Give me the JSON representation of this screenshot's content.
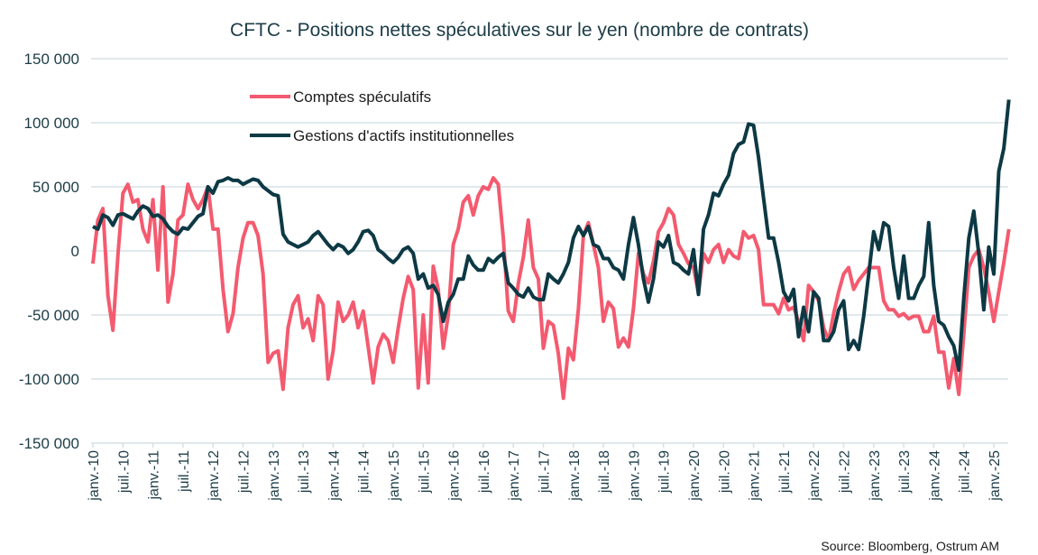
{
  "chart_data": {
    "type": "line",
    "title": "CFTC - Positions nettes spéculatives sur le yen (nombre de contrats)",
    "xlabel": "",
    "ylabel": "",
    "x_start": "janv. 2010",
    "x_frequency": "monthly",
    "ylim": [
      -150000,
      150000
    ],
    "yticks": [
      150000,
      100000,
      50000,
      0,
      -50000,
      -100000,
      -150000
    ],
    "ytick_labels": [
      "150 000",
      "100 000",
      "50 000",
      "0",
      "-50 000",
      "-100 000",
      "-150 000"
    ],
    "xtick_labels": [
      "janv.-10",
      "juil.-10",
      "janv.-11",
      "juil.-11",
      "janv.-12",
      "juil.-12",
      "janv.-13",
      "juil.-13",
      "janv.-14",
      "juil.-14",
      "janv.-15",
      "juil.-15",
      "janv.-16",
      "juil.-16",
      "janv.-17",
      "juil.-17",
      "janv.-18",
      "juil.-18",
      "janv.-19",
      "juil.-19",
      "janv.-20",
      "juil.-20",
      "janv.-21",
      "juil.-21",
      "janv.-22",
      "juil.-22",
      "janv.-23",
      "juil.-23",
      "janv.-24",
      "juil.-24",
      "janv.-25"
    ],
    "grid": true,
    "legend_position": "top-left",
    "series": [
      {
        "name": "Comptes spéculatifs",
        "color": "#f45a6f",
        "values": [
          -10000,
          24000,
          33000,
          -35000,
          -62000,
          -3000,
          45000,
          52000,
          38000,
          40000,
          17000,
          7000,
          40000,
          -15000,
          50000,
          -40000,
          -18000,
          24000,
          28000,
          52000,
          40000,
          33000,
          40000,
          50000,
          17000,
          17000,
          -30000,
          -63000,
          -49000,
          -13000,
          10000,
          22000,
          22000,
          12000,
          -18000,
          -87000,
          -80000,
          -78000,
          -108000,
          -60000,
          -42000,
          -35000,
          -60000,
          -53000,
          -70000,
          -35000,
          -42000,
          -100000,
          -78000,
          -40000,
          -55000,
          -50000,
          -40000,
          -60000,
          -47000,
          -75000,
          -103000,
          -75000,
          -65000,
          -70000,
          -87000,
          -60000,
          -37000,
          -20000,
          -30000,
          -107000,
          -50000,
          -103000,
          -12000,
          -30000,
          -76000,
          -50000,
          5000,
          17000,
          38000,
          43000,
          28000,
          43000,
          50000,
          48000,
          57000,
          52000,
          10000,
          -47000,
          -55000,
          -25000,
          -5000,
          24000,
          -13000,
          -22000,
          -76000,
          -55000,
          -58000,
          -80000,
          -115000,
          -76000,
          -85000,
          -45000,
          12000,
          22000,
          5000,
          -13000,
          -55000,
          -40000,
          -45000,
          -75000,
          -68000,
          -75000,
          -45000,
          -2000,
          -18000,
          -25000,
          -8000,
          15000,
          22000,
          33000,
          28000,
          5000,
          -2000,
          -10000,
          -13000,
          -33000,
          -2000,
          -9000,
          1000,
          5000,
          -9000,
          1000,
          -4000,
          -6000,
          15000,
          10000,
          12000,
          1000,
          -42000,
          -42000,
          -42000,
          -49000,
          -37000,
          -46000,
          -44000,
          -55000,
          -70000,
          -27000,
          -32000,
          -39000,
          -60000,
          -70000,
          -49000,
          -32000,
          -18000,
          -13000,
          -30000,
          -23000,
          -18000,
          -13000,
          -13000,
          -13000,
          -39000,
          -46000,
          -46000,
          -51000,
          -49000,
          -53000,
          -51000,
          -51000,
          -63000,
          -63000,
          -51000,
          -79000,
          -79000,
          -107000,
          -84000,
          -112000,
          -65000,
          -13000,
          -4000,
          1000,
          -13000,
          -32000,
          -55000,
          -32000,
          -9000,
          17000
        ]
      },
      {
        "name": "Gestions d'actifs institutionnelles",
        "color": "#0d3944",
        "values": [
          19000,
          17000,
          28000,
          26000,
          20000,
          28000,
          29000,
          27000,
          25000,
          31000,
          35000,
          33000,
          27000,
          28000,
          25000,
          19000,
          15000,
          13000,
          18000,
          17000,
          22000,
          27000,
          29000,
          50000,
          45000,
          54000,
          55000,
          57000,
          55000,
          55000,
          52000,
          54000,
          56000,
          55000,
          50000,
          47000,
          44000,
          43000,
          13000,
          7000,
          5000,
          3000,
          5000,
          7000,
          12000,
          15000,
          10000,
          5000,
          1000,
          5000,
          3000,
          -2000,
          1000,
          7000,
          15000,
          16000,
          12000,
          1000,
          -2000,
          -6000,
          -9000,
          -5000,
          1000,
          3000,
          -2000,
          -22000,
          -18000,
          -29000,
          -27000,
          -34000,
          -55000,
          -40000,
          -34000,
          -22000,
          -22000,
          -4000,
          -11000,
          -15000,
          -15000,
          -6000,
          -9000,
          -5000,
          -2000,
          -25000,
          -29000,
          -34000,
          -36000,
          -29000,
          -36000,
          -38000,
          -38000,
          -18000,
          -22000,
          -25000,
          -18000,
          -9000,
          10000,
          19000,
          12000,
          19000,
          5000,
          3000,
          -6000,
          -6000,
          -13000,
          -15000,
          -22000,
          5000,
          26000,
          5000,
          -22000,
          -40000,
          -22000,
          7000,
          3000,
          12000,
          -9000,
          -11000,
          -15000,
          -18000,
          1000,
          -34000,
          17000,
          28000,
          45000,
          43000,
          52000,
          59000,
          76000,
          83000,
          85000,
          99000,
          98000,
          73000,
          41000,
          10000,
          10000,
          -9000,
          -32000,
          -39000,
          -30000,
          -67000,
          -44000,
          -63000,
          -32000,
          -37000,
          -70000,
          -70000,
          -63000,
          -46000,
          -39000,
          -77000,
          -70000,
          -77000,
          -51000,
          -18000,
          15000,
          1000,
          22000,
          19000,
          -13000,
          -37000,
          -4000,
          -37000,
          -37000,
          -27000,
          -20000,
          22000,
          -27000,
          -55000,
          -58000,
          -67000,
          -74000,
          -93000,
          -37000,
          10000,
          31000,
          -2000,
          -46000,
          3000,
          -18000,
          62000,
          80000,
          118000
        ]
      }
    ],
    "source": "Source: Bloomberg,  Ostrum  AM"
  }
}
